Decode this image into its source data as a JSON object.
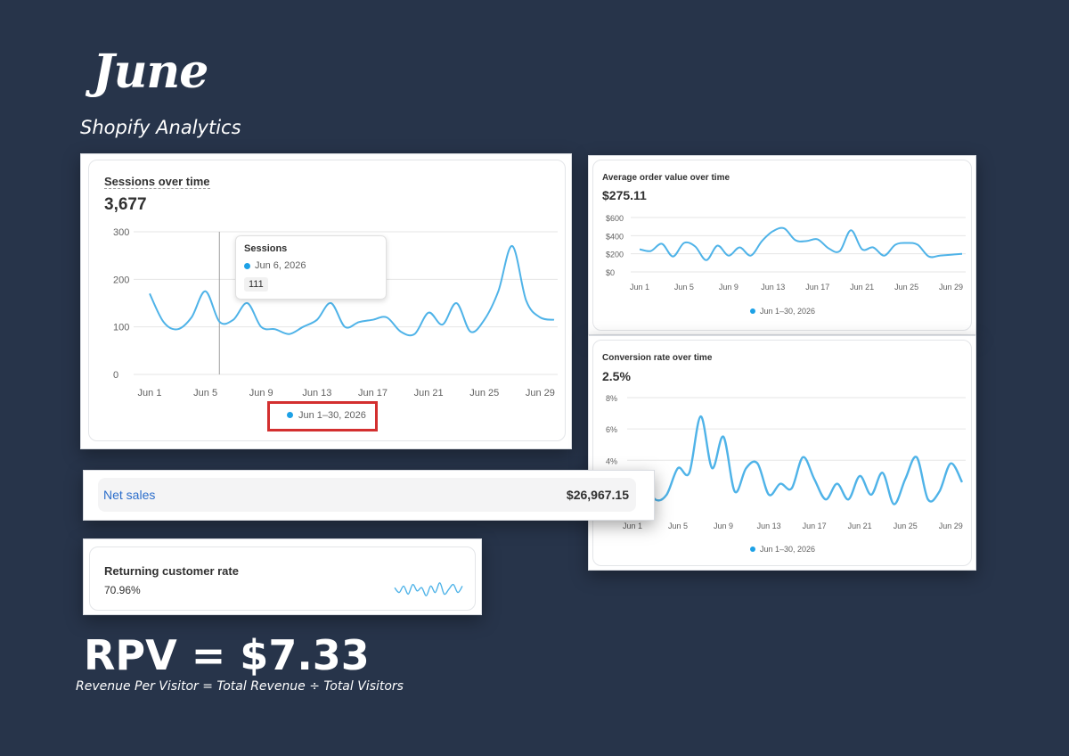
{
  "header": {
    "month": "June",
    "subtitle": "Shopify Analytics"
  },
  "sessions": {
    "title": "Sessions over time",
    "total": "3,677",
    "legend": "Jun 1–30, 2026",
    "tooltip": {
      "title": "Sessions",
      "date": "Jun 6, 2026",
      "value": "111"
    }
  },
  "aov": {
    "title": "Average order value over time",
    "total": "$275.11",
    "legend": "Jun 1–30, 2026"
  },
  "conversion": {
    "title": "Conversion rate over time",
    "total": "2.5%",
    "legend": "Jun 1–30, 2026"
  },
  "net_sales": {
    "label": "Net sales",
    "value": "$26,967.15"
  },
  "returning": {
    "label": "Returning customer rate",
    "value": "70.96%"
  },
  "rpv": {
    "formula": "RPV = $7.33",
    "definition": "Revenue Per Visitor = Total Revenue ÷ Total Visitors"
  },
  "colors": {
    "background": "#27344a",
    "line": "#4fb3e8",
    "link": "#2c6ecb",
    "highlight_box": "#d32f2f"
  },
  "chart_data": [
    {
      "type": "line",
      "title": "Sessions over time",
      "x": [
        "Jun 1",
        "Jun 2",
        "Jun 3",
        "Jun 4",
        "Jun 5",
        "Jun 6",
        "Jun 7",
        "Jun 8",
        "Jun 9",
        "Jun 10",
        "Jun 11",
        "Jun 12",
        "Jun 13",
        "Jun 14",
        "Jun 15",
        "Jun 16",
        "Jun 17",
        "Jun 18",
        "Jun 19",
        "Jun 20",
        "Jun 21",
        "Jun 22",
        "Jun 23",
        "Jun 24",
        "Jun 25",
        "Jun 26",
        "Jun 27",
        "Jun 28",
        "Jun 29",
        "Jun 30"
      ],
      "xticks": [
        "Jun 1",
        "Jun 5",
        "Jun 9",
        "Jun 13",
        "Jun 17",
        "Jun 21",
        "Jun 25",
        "Jun 29"
      ],
      "yticks": [
        "0",
        "100",
        "200",
        "300"
      ],
      "ylim": [
        0,
        300
      ],
      "series": [
        {
          "name": "Jun 1–30, 2026",
          "values": [
            170,
            110,
            95,
            120,
            175,
            111,
            115,
            150,
            100,
            95,
            85,
            100,
            115,
            150,
            100,
            110,
            115,
            120,
            90,
            85,
            130,
            105,
            150,
            90,
            115,
            175,
            270,
            155,
            120,
            115
          ]
        }
      ]
    },
    {
      "type": "line",
      "title": "Average order value over time",
      "x": [
        "Jun 1",
        "Jun 2",
        "Jun 3",
        "Jun 4",
        "Jun 5",
        "Jun 6",
        "Jun 7",
        "Jun 8",
        "Jun 9",
        "Jun 10",
        "Jun 11",
        "Jun 12",
        "Jun 13",
        "Jun 14",
        "Jun 15",
        "Jun 16",
        "Jun 17",
        "Jun 18",
        "Jun 19",
        "Jun 20",
        "Jun 21",
        "Jun 22",
        "Jun 23",
        "Jun 24",
        "Jun 25",
        "Jun 26",
        "Jun 27",
        "Jun 28",
        "Jun 29",
        "Jun 30"
      ],
      "xticks": [
        "Jun 1",
        "Jun 5",
        "Jun 9",
        "Jun 13",
        "Jun 17",
        "Jun 21",
        "Jun 25",
        "Jun 29"
      ],
      "yticks": [
        "$0",
        "$200",
        "$400",
        "$600"
      ],
      "ylim": [
        0,
        600
      ],
      "series": [
        {
          "name": "Jun 1–30, 2026",
          "values": [
            250,
            230,
            310,
            170,
            320,
            280,
            130,
            290,
            180,
            270,
            180,
            340,
            450,
            480,
            350,
            340,
            360,
            260,
            230,
            460,
            250,
            270,
            180,
            300,
            320,
            300,
            170,
            180,
            190,
            200
          ]
        }
      ]
    },
    {
      "type": "line",
      "title": "Conversion rate over time",
      "x": [
        "Jun 1",
        "Jun 2",
        "Jun 3",
        "Jun 4",
        "Jun 5",
        "Jun 6",
        "Jun 7",
        "Jun 8",
        "Jun 9",
        "Jun 10",
        "Jun 11",
        "Jun 12",
        "Jun 13",
        "Jun 14",
        "Jun 15",
        "Jun 16",
        "Jun 17",
        "Jun 18",
        "Jun 19",
        "Jun 20",
        "Jun 21",
        "Jun 22",
        "Jun 23",
        "Jun 24",
        "Jun 25",
        "Jun 26",
        "Jun 27",
        "Jun 28",
        "Jun 29",
        "Jun 30"
      ],
      "xticks": [
        "Jun 1",
        "Jun 5",
        "Jun 9",
        "Jun 13",
        "Jun 17",
        "Jun 21",
        "Jun 25",
        "Jun 29"
      ],
      "yticks": [
        "4%",
        "6%",
        "8%"
      ],
      "ylim": [
        1,
        8
      ],
      "series": [
        {
          "name": "Jun 1–30, 2026",
          "values": [
            3.2,
            2.8,
            1.5,
            1.8,
            3.5,
            3.2,
            6.8,
            3.5,
            5.5,
            2.0,
            3.5,
            3.8,
            1.8,
            2.5,
            2.2,
            4.2,
            2.8,
            1.5,
            2.5,
            1.5,
            3.0,
            1.8,
            3.2,
            1.2,
            2.8,
            4.2,
            1.5,
            2.0,
            3.8,
            2.6
          ]
        }
      ]
    },
    {
      "type": "line",
      "title": "Returning customer rate",
      "series": [
        {
          "name": "",
          "values": [
            0.6,
            0.3,
            0.7,
            0.2,
            0.8,
            0.4,
            0.6,
            0.1,
            0.7,
            0.3,
            0.9,
            0.2,
            0.5,
            0.8,
            0.3,
            0.7
          ]
        }
      ]
    }
  ]
}
